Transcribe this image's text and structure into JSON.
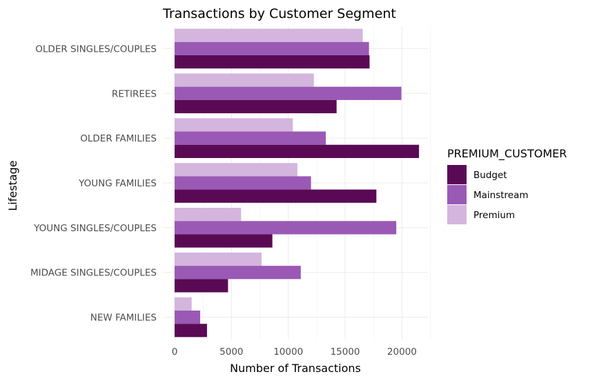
{
  "chart_data": {
    "type": "bar",
    "orientation": "horizontal",
    "title": "Transactions by Customer Segment",
    "xlabel": "Number of Transactions",
    "ylabel": "Lifestage",
    "xlim": [
      0,
      22500
    ],
    "x_ticks": [
      0,
      5000,
      10000,
      15000,
      20000
    ],
    "grid": true,
    "legend_position": "right",
    "legend_title": "PREMIUM_CUSTOMER",
    "categories": [
      "OLDER SINGLES/COUPLES",
      "RETIREES",
      "OLDER FAMILIES",
      "YOUNG FAMILIES",
      "YOUNG SINGLES/COUPLES",
      "MIDAGE SINGLES/COUPLES",
      "NEW FAMILIES"
    ],
    "series": [
      {
        "name": "Budget",
        "color": "#5a0a55",
        "values": [
          17150,
          14250,
          21500,
          17750,
          8600,
          4700,
          2850
        ]
      },
      {
        "name": "Mainstream",
        "color": "#9a59b5",
        "values": [
          17100,
          19950,
          13300,
          12000,
          19500,
          11100,
          2250
        ]
      },
      {
        "name": "Premium",
        "color": "#d4b5de",
        "values": [
          16550,
          12250,
          10400,
          10800,
          5850,
          7650,
          1500
        ]
      }
    ]
  }
}
